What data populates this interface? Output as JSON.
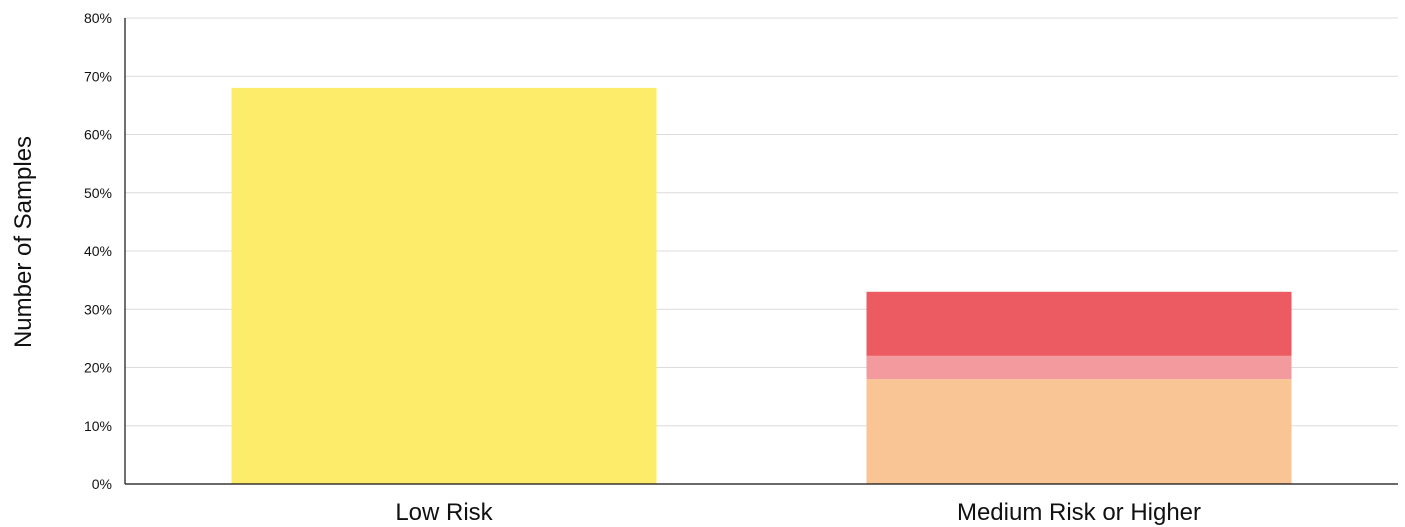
{
  "chart_data": {
    "type": "bar",
    "stacked": true,
    "title": "",
    "xlabel": "",
    "ylabel": "Number of Samples",
    "ylim": [
      0,
      80
    ],
    "y_tick_format": "percent",
    "y_ticks": [
      "0%",
      "10%",
      "20%",
      "30%",
      "40%",
      "50%",
      "60%",
      "70%",
      "80%"
    ],
    "grid": true,
    "legend": "none",
    "categories": [
      "Low Risk",
      "Medium Risk or Higher"
    ],
    "series": [
      {
        "color": "#fcec6a",
        "values": [
          68,
          0
        ]
      },
      {
        "color": "#fac595",
        "values": [
          0,
          18
        ]
      },
      {
        "color": "#f29a9d",
        "values": [
          0,
          4
        ]
      },
      {
        "color": "#ec5b61",
        "values": [
          0,
          11
        ]
      }
    ],
    "colors": {
      "grid": "#dcdcdc",
      "axis": "#111111"
    }
  }
}
